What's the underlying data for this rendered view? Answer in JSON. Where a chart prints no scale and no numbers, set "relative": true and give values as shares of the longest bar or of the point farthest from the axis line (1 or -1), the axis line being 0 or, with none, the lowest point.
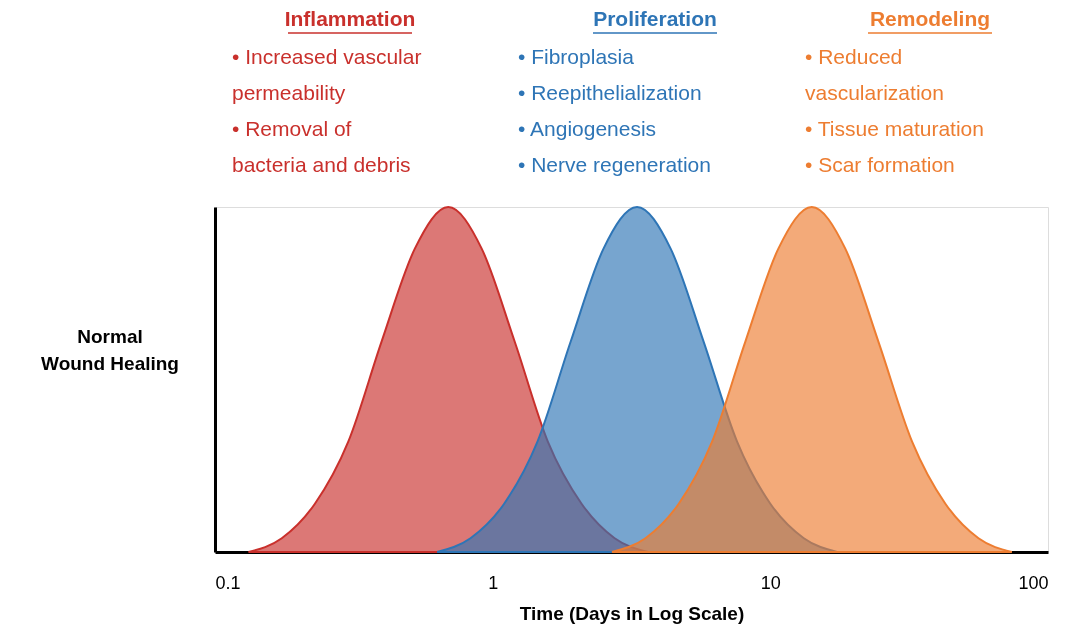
{
  "chart_data": {
    "type": "area",
    "relative": true,
    "log": "x",
    "grid": false,
    "legend": false,
    "xlabel": "Time (Days in Log Scale)",
    "ylabel": "Normal\nWound Healing",
    "xlim": [
      0.1,
      100
    ],
    "xticks": [
      0.1,
      1,
      10,
      100
    ],
    "annotations": [
      "•  Increased vascular\n    permeability\n•  Removal of\n    bacteria and debris",
      "•  Fibroplasia\n•  Reepithelialization\n•  Angiogenesis\n•  Nerve regeneration",
      "•  Reduced\n    vascularization\n•  Tissue maturation\n•  Scar formation"
    ],
    "series": [
      {
        "name": "Inflammation",
        "color": "#c9302c",
        "x": [
          0.132,
          0.174,
          0.229,
          0.302,
          0.398,
          0.525,
          0.692,
          0.912,
          1.2,
          1.58,
          2.09,
          2.75,
          3.63
        ],
        "values": [
          0,
          0.04,
          0.14,
          0.32,
          0.61,
          0.88,
          1,
          0.88,
          0.61,
          0.32,
          0.14,
          0.04,
          0
        ]
      },
      {
        "name": "Proliferation",
        "color": "#2e75b6",
        "x": [
          0.631,
          0.832,
          1.1,
          1.45,
          1.91,
          2.51,
          3.31,
          4.37,
          5.75,
          7.59,
          10,
          13.2,
          17.4
        ],
        "values": [
          0,
          0.04,
          0.14,
          0.32,
          0.61,
          0.88,
          1,
          0.88,
          0.61,
          0.32,
          0.14,
          0.04,
          0
        ]
      },
      {
        "name": "Remodeling",
        "color": "#ed7d31",
        "x": [
          2.69,
          3.55,
          4.68,
          6.17,
          8.13,
          10.7,
          14.1,
          18.6,
          24.5,
          32.4,
          42.7,
          56.2,
          74.1
        ],
        "values": [
          0,
          0.04,
          0.14,
          0.32,
          0.61,
          0.88,
          1,
          0.88,
          0.61,
          0.32,
          0.14,
          0.04,
          0
        ]
      }
    ]
  }
}
